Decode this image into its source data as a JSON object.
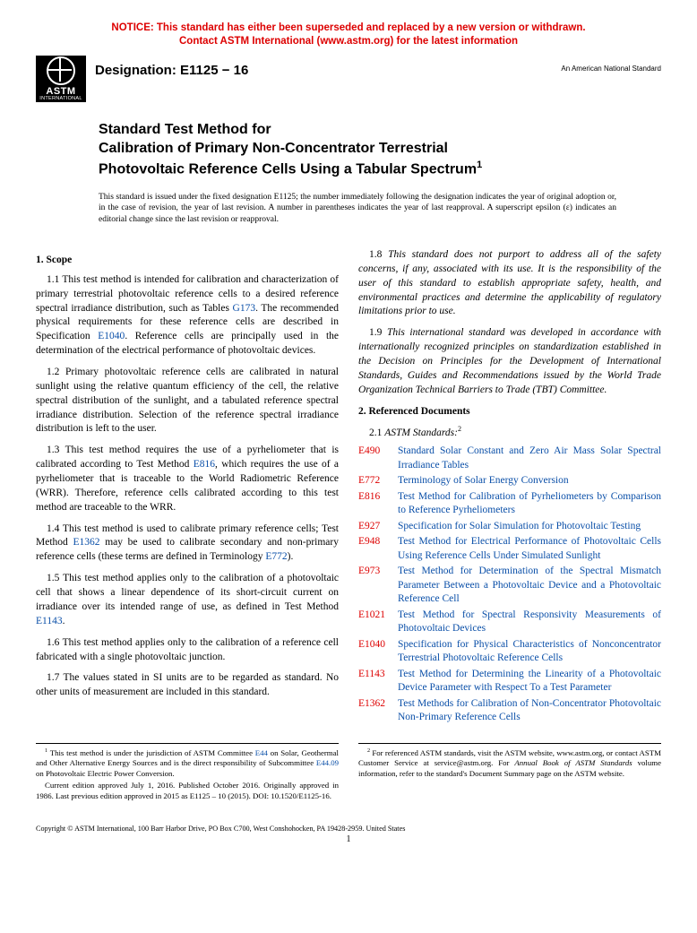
{
  "notice": {
    "line1": "NOTICE: This standard has either been superseded and replaced by a new version or withdrawn.",
    "line2": "Contact ASTM International (www.astm.org) for the latest information"
  },
  "logo": {
    "text": "ASTM",
    "sub": "INTERNATIONAL"
  },
  "header": {
    "designation": "Designation: E1125 − 16",
    "ans": "An American National Standard"
  },
  "title": {
    "line1": "Standard Test Method for",
    "line2": "Calibration of Primary Non-Concentrator Terrestrial",
    "line3_pre": "Photovoltaic Reference Cells Using a Tabular Spectrum",
    "line3_sup": "1"
  },
  "issuance": "This standard is issued under the fixed designation E1125; the number immediately following the designation indicates the year of original adoption or, in the case of revision, the year of last revision. A number in parentheses indicates the year of last reapproval. A superscript epsilon (ε) indicates an editorial change since the last revision or reapproval.",
  "scope": {
    "head": "1. Scope",
    "p1_a": "1.1 This test method is intended for calibration and characterization of primary terrestrial photovoltaic reference cells to a desired reference spectral irradiance distribution, such as Tables ",
    "p1_link1": "G173",
    "p1_b": ". The recommended physical requirements for these reference cells are described in Specification ",
    "p1_link2": "E1040",
    "p1_c": ". Reference cells are principally used in the determination of the electrical performance of photovoltaic devices.",
    "p2": "1.2 Primary photovoltaic reference cells are calibrated in natural sunlight using the relative quantum efficiency of the cell, the relative spectral distribution of the sunlight, and a tabulated reference spectral irradiance distribution. Selection of the reference spectral irradiance distribution is left to the user.",
    "p3_a": "1.3 This test method requires the use of a pyrheliometer that is calibrated according to Test Method ",
    "p3_link": "E816",
    "p3_b": ", which requires the use of a pyrheliometer that is traceable to the World Radiometric Reference (WRR). Therefore, reference cells calibrated according to this test method are traceable to the WRR.",
    "p4_a": "1.4 This test method is used to calibrate primary reference cells; Test Method ",
    "p4_link1": "E1362",
    "p4_b": " may be used to calibrate secondary and non-primary reference cells (these terms are defined in Terminology ",
    "p4_link2": "E772",
    "p4_c": ").",
    "p5_a": "1.5 This test method applies only to the calibration of a photovoltaic cell that shows a linear dependence of its short-circuit current on irradiance over its intended range of use, as defined in Test Method ",
    "p5_link": "E1143",
    "p5_b": ".",
    "p6": "1.6 This test method applies only to the calibration of a reference cell fabricated with a single photovoltaic junction.",
    "p7": "1.7 The values stated in SI units are to be regarded as standard. No other units of measurement are included in this standard.",
    "p8": "1.8 This standard does not purport to address all of the safety concerns, if any, associated with its use. It is the responsibility of the user of this standard to establish appropriate safety, health, and environmental practices and determine the applicability of regulatory limitations prior to use.",
    "p9": "1.9 This international standard was developed in accordance with internationally recognized principles on standardization established in the Decision on Principles for the Development of International Standards, Guides and Recommendations issued by the World Trade Organization Technical Barriers to Trade (TBT) Committee."
  },
  "refs": {
    "head": "2. Referenced Documents",
    "sub_a": "2.1 ",
    "sub_b": "ASTM Standards:",
    "sub_sup": "2",
    "items": [
      {
        "code": "E490",
        "title": "Standard Solar Constant and Zero Air Mass Solar Spectral Irradiance Tables"
      },
      {
        "code": "E772",
        "title": "Terminology of Solar Energy Conversion"
      },
      {
        "code": "E816",
        "title": "Test Method for Calibration of Pyrheliometers by Comparison to Reference Pyrheliometers"
      },
      {
        "code": "E927",
        "title": "Specification for Solar Simulation for Photovoltaic Testing"
      },
      {
        "code": "E948",
        "title": "Test Method for Electrical Performance of Photovoltaic Cells Using Reference Cells Under Simulated Sunlight"
      },
      {
        "code": "E973",
        "title": "Test Method for Determination of the Spectral Mismatch Parameter Between a Photovoltaic Device and a Photovoltaic Reference Cell"
      },
      {
        "code": "E1021",
        "title": "Test Method for Spectral Responsivity Measurements of Photovoltaic Devices"
      },
      {
        "code": "E1040",
        "title": "Specification for Physical Characteristics of Nonconcentrator Terrestrial Photovoltaic Reference Cells"
      },
      {
        "code": "E1143",
        "title": "Test Method for Determining the Linearity of a Photovoltaic Device Parameter with Respect To a Test Parameter"
      },
      {
        "code": "E1362",
        "title": "Test Methods for Calibration of Non-Concentrator Photovoltaic Non-Primary Reference Cells"
      }
    ]
  },
  "footnotes": {
    "left": {
      "f1_sup": "1",
      "f1_a": " This test method is under the jurisdiction of ASTM Committee ",
      "f1_link1": "E44",
      "f1_b": " on Solar, Geothermal and Other Alternative Energy Sources and is the direct responsibility of Subcommittee ",
      "f1_link2": "E44.09",
      "f1_c": " on Photovoltaic Electric Power Conversion.",
      "f1_p2": "Current edition approved July 1, 2016. Published October 2016. Originally approved in 1986. Last previous edition approved in 2015 as E1125 – 10 (2015). DOI: 10.1520/E1125-16."
    },
    "right": {
      "f2_sup": "2",
      "f2_a": " For referenced ASTM standards, visit the ASTM website, www.astm.org, or contact ASTM Customer Service at service@astm.org. For ",
      "f2_b": "Annual Book of ASTM Standards",
      "f2_c": " volume information, refer to the standard's Document Summary page on the ASTM website."
    }
  },
  "copyright": "Copyright © ASTM International, 100 Barr Harbor Drive, PO Box C700, West Conshohocken, PA 19428-2959. United States",
  "pagenum": "1",
  "colors": {
    "notice": "#d00000",
    "link": "#0a4fa8",
    "refcode": "#d00000"
  }
}
